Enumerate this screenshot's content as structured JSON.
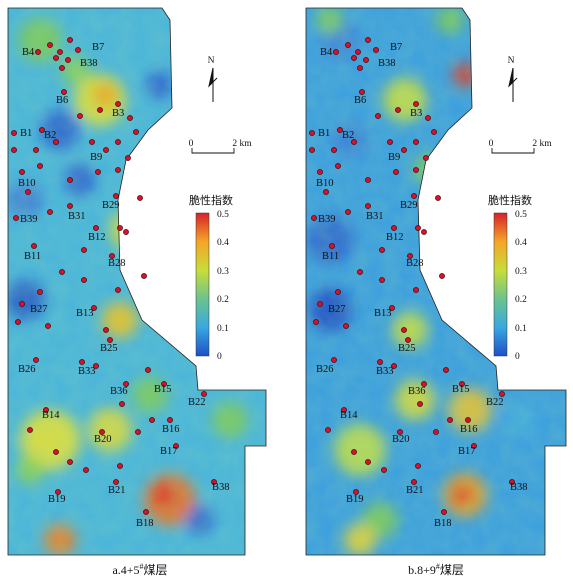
{
  "maps": [
    {
      "caption": "a.4+5",
      "caption_sup": "#",
      "caption_suffix": "煤层",
      "legend_title": "脆性指数",
      "legend_ticks": [
        "0.5",
        "0.4",
        "0.3",
        "0.2",
        "0.1",
        "0"
      ],
      "north": "N",
      "scale_zero": "0",
      "scale_end": "2 km",
      "wells": [
        "B1",
        "B2",
        "B3",
        "B4",
        "B6",
        "B7",
        "B9",
        "B10",
        "B11",
        "B12",
        "B13",
        "B14",
        "B15",
        "B16",
        "B17",
        "B18",
        "B19",
        "B20",
        "B21",
        "B22",
        "B25",
        "B26",
        "B27",
        "B28",
        "B29",
        "B31",
        "B33",
        "B36",
        "B38",
        "B38",
        "B39"
      ]
    },
    {
      "caption": "b.8+9",
      "caption_sup": "#",
      "caption_suffix": "煤层",
      "legend_title": "脆性指数",
      "legend_ticks": [
        "0.5",
        "0.4",
        "0.3",
        "0.2",
        "0.1",
        "0"
      ],
      "north": "N",
      "scale_zero": "0",
      "scale_end": "2 km",
      "wells": [
        "B1",
        "B2",
        "B3",
        "B4",
        "B6",
        "B7",
        "B9",
        "B10",
        "B11",
        "B12",
        "B13",
        "B14",
        "B15",
        "B16",
        "B17",
        "B18",
        "B19",
        "B20",
        "B21",
        "B22",
        "B25",
        "B26",
        "B27",
        "B28",
        "B29",
        "B31",
        "B33",
        "B36",
        "B38",
        "B38",
        "B39"
      ]
    }
  ],
  "colors": {
    "low": "#1a5fcf",
    "mid_low": "#3fb0dd",
    "mid": "#7fcf5a",
    "mid_high": "#e8e030",
    "high": "#e03020",
    "well": "#d8102a"
  }
}
